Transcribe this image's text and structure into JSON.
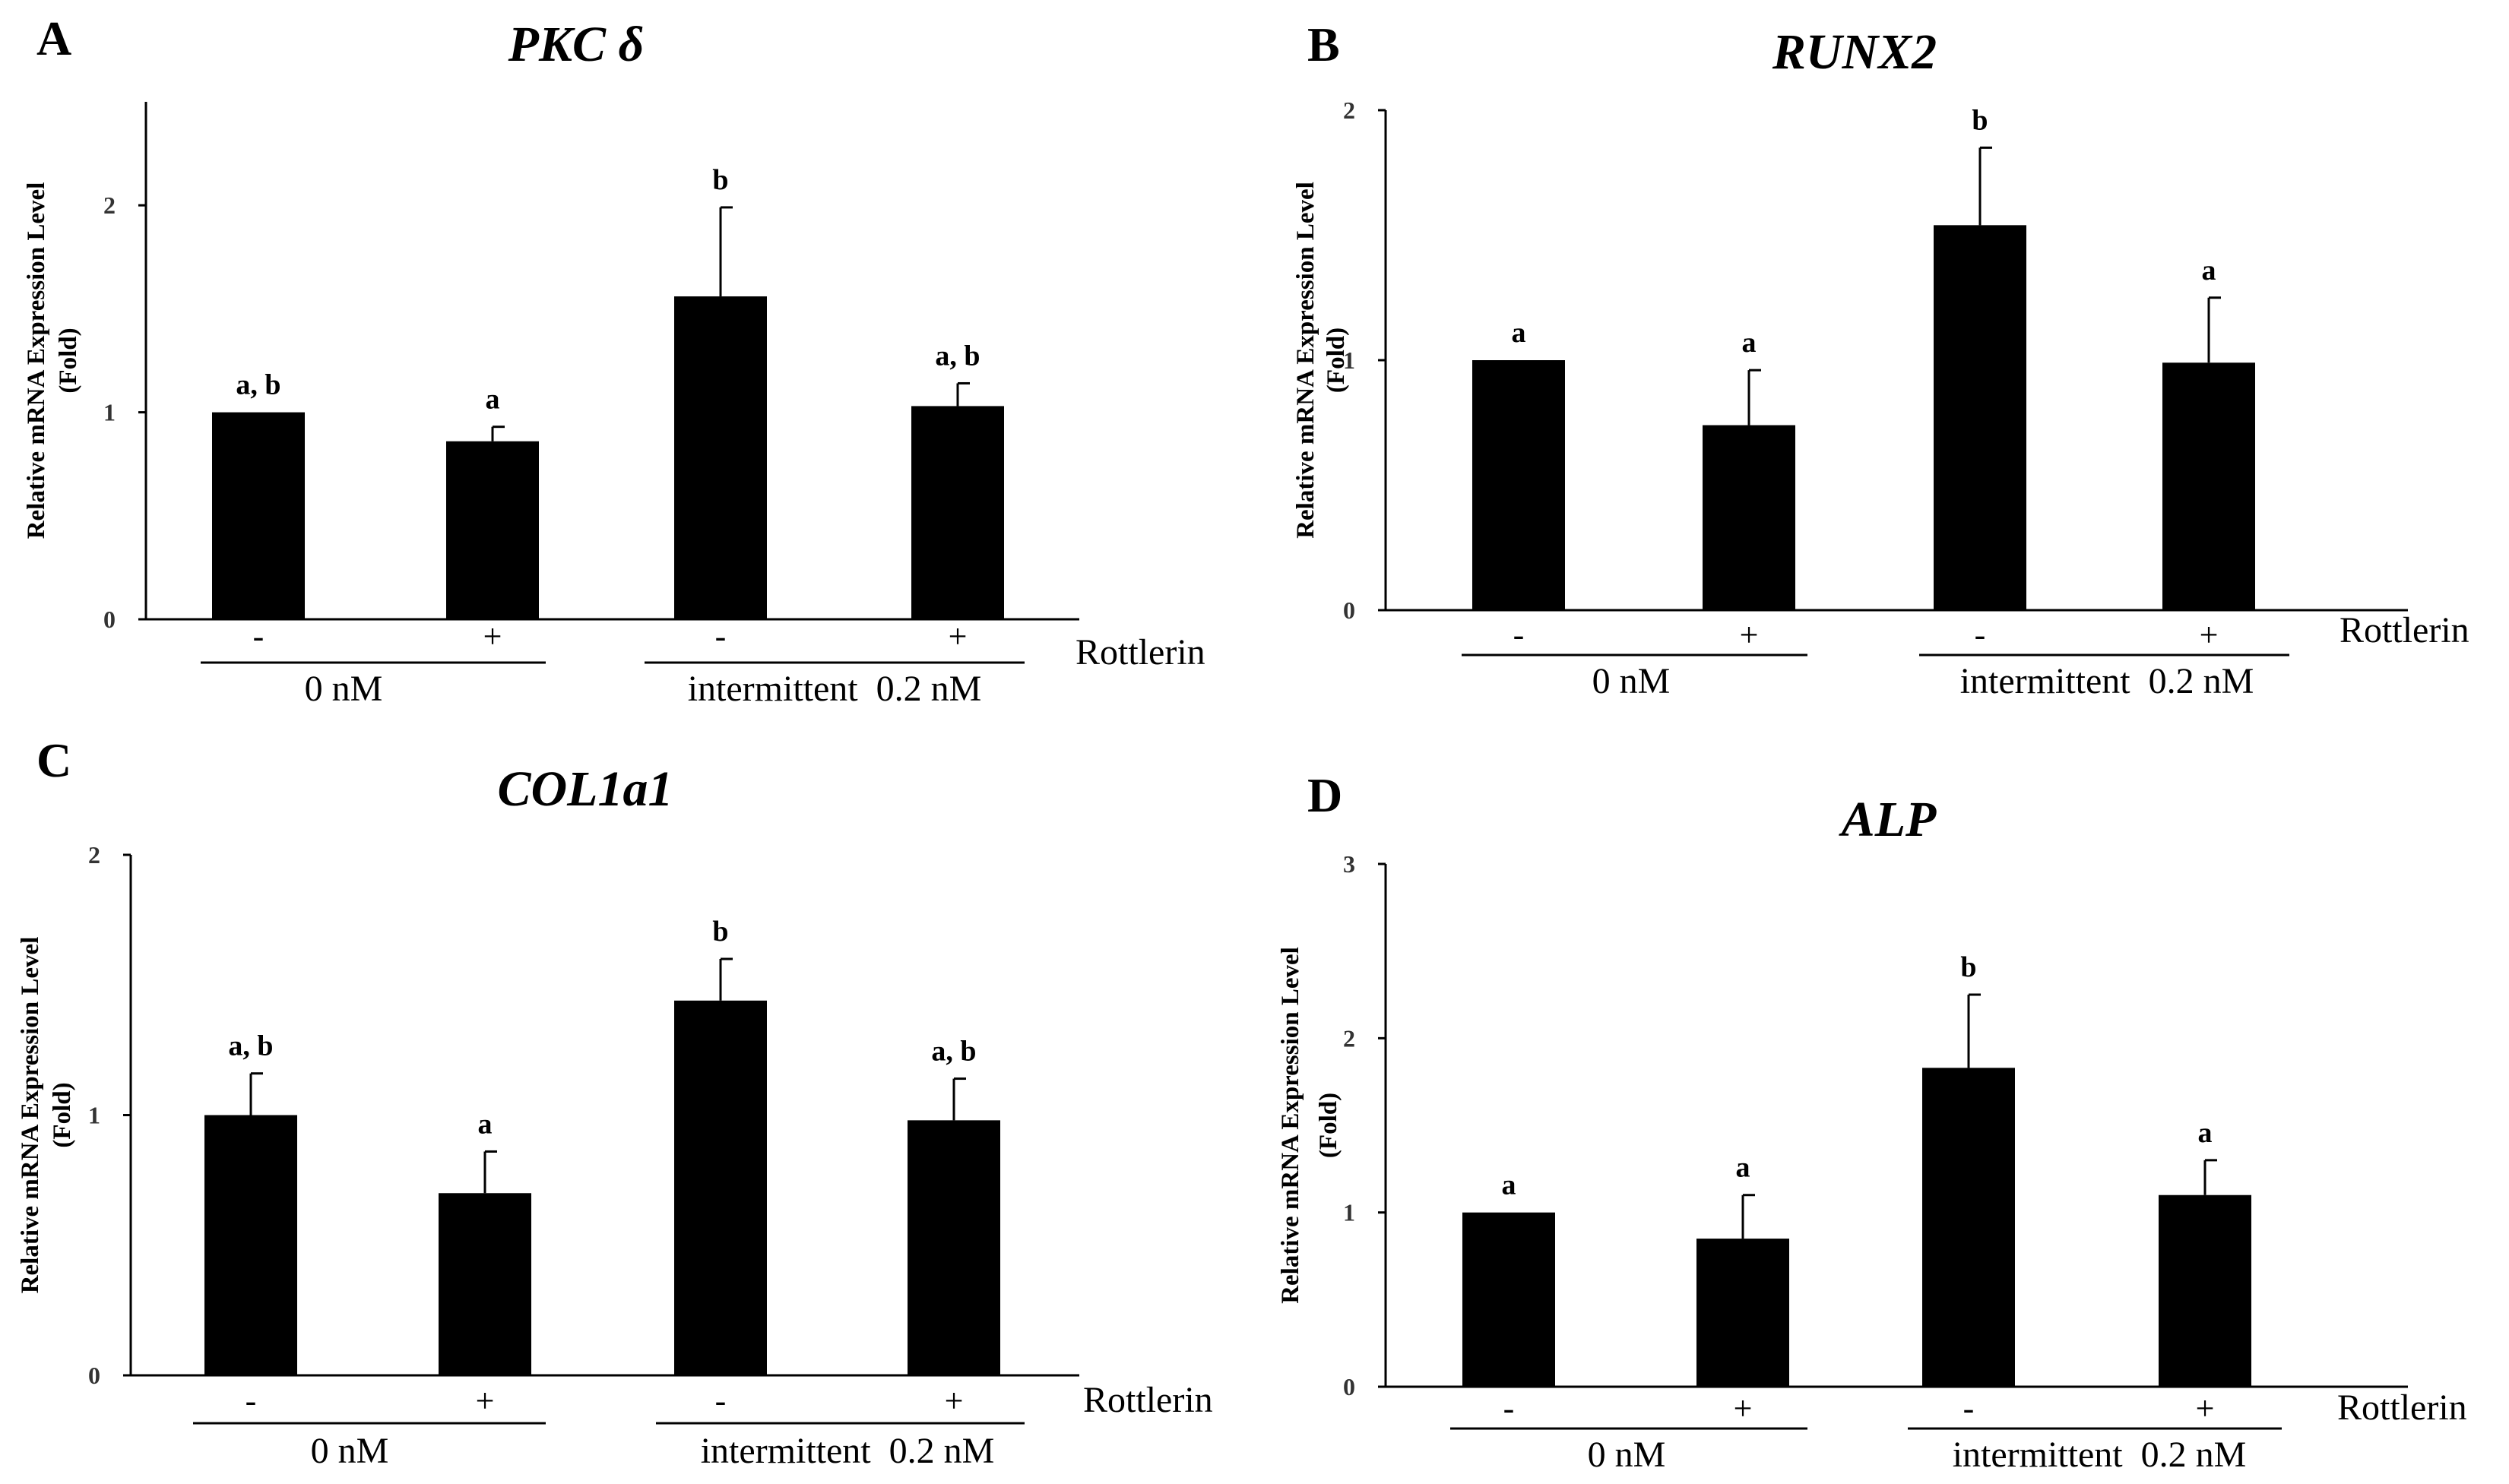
{
  "chart_data": [
    {
      "type": "bar",
      "panel": "A",
      "title": "PKC δ",
      "ylabel": "Relative mRNA Expression Level",
      "ylabel_unit": "(Fold)",
      "ylim": [
        0,
        2.5
      ],
      "yticks": [
        "0",
        "1",
        "2"
      ],
      "categories": [
        "-",
        "+",
        "-",
        "+"
      ],
      "groups": [
        "0 nM",
        "intermittent  0.2 nM"
      ],
      "treatment_label": "Rottlerin",
      "values": [
        1.0,
        0.86,
        1.56,
        1.03
      ],
      "errors": [
        0,
        0.07,
        0.43,
        0.11
      ],
      "significance": [
        "a, b",
        "a",
        "b",
        "a, b"
      ]
    },
    {
      "type": "bar",
      "panel": "B",
      "title": "RUNX2",
      "ylabel": "Relative mRNA Expression Level",
      "ylabel_unit": "(Fold)",
      "ylim": [
        0,
        2
      ],
      "yticks": [
        "0",
        "1",
        "2"
      ],
      "categories": [
        "-",
        "+",
        "-",
        "+"
      ],
      "groups": [
        "0 nM",
        "intermittent  0.2 nM"
      ],
      "treatment_label": "Rottlerin",
      "values": [
        1.0,
        0.74,
        1.54,
        0.99
      ],
      "errors": [
        0,
        0.22,
        0.31,
        0.26
      ],
      "significance": [
        "a",
        "a",
        "b",
        "a"
      ]
    },
    {
      "type": "bar",
      "panel": "C",
      "title": "COL1a1",
      "ylabel": "Relative mRNA Expression Level",
      "ylabel_unit": "(Fold)",
      "ylim": [
        0,
        2
      ],
      "yticks": [
        "0",
        "1",
        "2"
      ],
      "categories": [
        "-",
        "+",
        "-",
        "+"
      ],
      "groups": [
        "0 nM",
        "intermittent  0.2 nM"
      ],
      "treatment_label": "Rottlerin",
      "values": [
        1.0,
        0.7,
        1.44,
        0.98
      ],
      "errors": [
        0.16,
        0.16,
        0.16,
        0.16
      ],
      "significance": [
        "a, b",
        "a",
        "b",
        "a, b"
      ]
    },
    {
      "type": "bar",
      "panel": "D",
      "title": "ALP",
      "ylabel": "Relative mRNA Expression Level",
      "ylabel_unit": "(Fold)",
      "ylim": [
        0,
        3
      ],
      "yticks": [
        "0",
        "1",
        "2",
        "3"
      ],
      "categories": [
        "-",
        "+",
        "-",
        "+"
      ],
      "groups": [
        "0 nM",
        "intermittent  0.2 nM"
      ],
      "treatment_label": "Rottlerin",
      "values": [
        1.0,
        0.85,
        1.83,
        1.1
      ],
      "errors": [
        0,
        0.25,
        0.42,
        0.2
      ],
      "significance": [
        "a",
        "a",
        "b",
        "a"
      ]
    }
  ]
}
